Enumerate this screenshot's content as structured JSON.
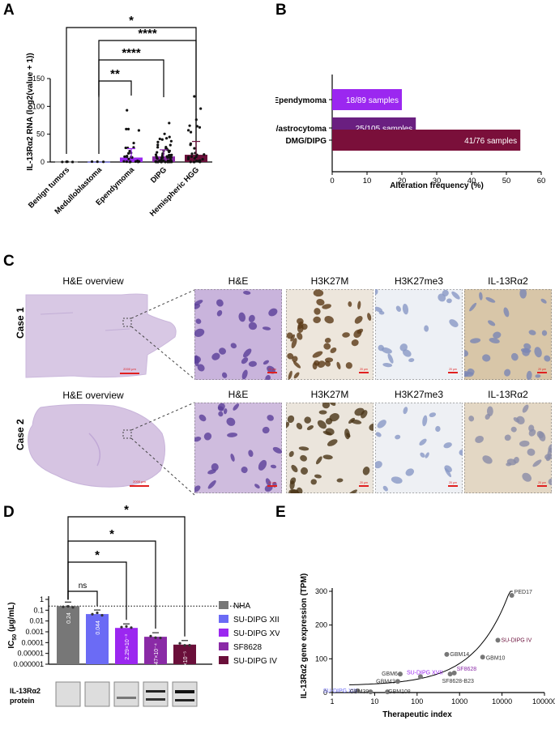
{
  "panels": {
    "a": "A",
    "b": "B",
    "c": "C",
    "d": "D",
    "e": "E"
  },
  "panel_a": {
    "ylabel": "IL-13Rα2 RNA (log2(value + 1))",
    "yticks": [
      "0",
      "50",
      "100",
      "150"
    ],
    "categories": [
      "Benign tumors",
      "Medulloblastoma",
      "Ependymoma",
      "DIPG",
      "Hemispheric HGG"
    ],
    "sig": [
      "*",
      "****",
      "****",
      "**"
    ]
  },
  "chart_data": [
    {
      "type": "bar",
      "title": "",
      "ylabel": "IL-13Rα2 RNA (log2(value + 1))",
      "categories": [
        "Benign tumors",
        "Medulloblastoma",
        "Ependymoma",
        "DIPG",
        "Hemispheric HGG"
      ],
      "values": [
        0.5,
        0.5,
        8,
        10,
        13
      ],
      "colors": [
        "#9b9b9b",
        "#6b6bf5",
        "#9b27f0",
        "#8a2aa6",
        "#6a0f3a"
      ],
      "ylim": [
        0,
        150
      ],
      "yticks": [
        0,
        50,
        100,
        150
      ]
    },
    {
      "type": "bar",
      "orientation": "horizontal",
      "xlabel": "Alteration frequency (%)",
      "categories": [
        "Ependymoma",
        "HGG/astrocytoma",
        "DMG/DIPG"
      ],
      "values": [
        20,
        24,
        54
      ],
      "labels": [
        "18/89 samples",
        "25/105 samples",
        "41/76 samples"
      ],
      "colors": [
        "#9b27f0",
        "#6a1f80",
        "#7a0f3a"
      ],
      "xlim": [
        0,
        60
      ],
      "xticks": [
        0,
        10,
        20,
        30,
        40,
        50,
        60
      ]
    },
    {
      "type": "bar",
      "ylabel": "IC50 (μg/mL)",
      "yscale": "log",
      "categories": [
        "NHA",
        "SU-DIPG XIII",
        "SU-DIPG XVII",
        "SF8628",
        "SU-DIPG IV"
      ],
      "values": [
        0.24,
        0.044,
        0.00229,
        0.000347,
        6.52e-05
      ],
      "bar_labels": [
        "0.24",
        "0.044",
        "2.29×10⁻³",
        "3.47×10⁻⁴",
        "6.52×10⁻⁵"
      ],
      "colors": [
        "#777777",
        "#6b6bf5",
        "#9b27f0",
        "#8a2aa6",
        "#6a0f3a"
      ],
      "yticks": [
        "1",
        "0.1",
        "0.01",
        "0.001",
        "0.0001",
        "0.00001",
        "0.000001"
      ],
      "threshold": 0.24
    },
    {
      "type": "scatter",
      "xscale": "log",
      "xlabel": "Therapeutic index",
      "ylabel": "IL-13Rα2 gene expression (TPM)",
      "xticks": [
        "1",
        "10",
        "100",
        "1000",
        "10000",
        "100000"
      ],
      "yticks": [
        0,
        100,
        200,
        300
      ],
      "ylim": [
        0,
        300
      ],
      "points": [
        {
          "name": "PED17",
          "x": 17000,
          "y": 288
        },
        {
          "name": "SU-DIPG IV",
          "x": 8000,
          "y": 155
        },
        {
          "name": "GBM10",
          "x": 3500,
          "y": 105
        },
        {
          "name": "GBM14",
          "x": 500,
          "y": 113
        },
        {
          "name": "SF8628",
          "x": 750,
          "y": 58
        },
        {
          "name": "SF8628-B23",
          "x": 600,
          "y": 55
        },
        {
          "name": "SU-DIPG XVII",
          "x": 120,
          "y": 47
        },
        {
          "name": "GBM6",
          "x": 40,
          "y": 55
        },
        {
          "name": "GBM43",
          "x": 35,
          "y": 33
        },
        {
          "name": "SU-DIPG XIII",
          "x": 4,
          "y": 5
        },
        {
          "name": "GBM39",
          "x": 8,
          "y": 2
        },
        {
          "name": "GBM108",
          "x": 20,
          "y": 2
        }
      ]
    }
  ],
  "panel_b": {
    "xlabel": "Alteration frequency (%)",
    "categories": [
      "Ependymoma",
      "HGG/astrocytoma",
      "DMG/DIPG"
    ],
    "labels": [
      "18/89 samples",
      "25/105 samples",
      "41/76 samples"
    ],
    "xticks": [
      "0",
      "10",
      "20",
      "30",
      "40",
      "50",
      "60"
    ]
  },
  "panel_c": {
    "overview": "H&E overview",
    "stains": [
      "H&E",
      "H3K27M",
      "H3K27me3",
      "IL-13Rα2"
    ],
    "cases": [
      "Case 1",
      "Case 2"
    ],
    "scale_overview": "2000 μm",
    "scale_micro": "20 μm"
  },
  "panel_d": {
    "ylabel_main": "IC",
    "ylabel_sub": "50",
    "ylabel_unit": " (μg/mL)",
    "yticks": [
      "1",
      "0.1",
      "0.01",
      "0.001",
      "0.0001",
      "0.00001",
      "0.000001"
    ],
    "bar_labels": [
      "0.24",
      "0.044",
      "2.29×10⁻³",
      "3.47×10⁻⁴",
      "6.52×10⁻⁵"
    ],
    "sig": [
      "*",
      "*",
      "*",
      "ns"
    ],
    "legend": [
      "NHA",
      "SU-DIPG XIII",
      "SU-DIPG XVII",
      "SF8628",
      "SU-DIPG IV"
    ],
    "protein_label_1": "IL-13Rα2",
    "protein_label_2": "protein"
  },
  "panel_e": {
    "ylabel": "IL-13Rα2 gene expression (TPM)",
    "xlabel": "Therapeutic index",
    "xticks": [
      "1",
      "10",
      "100",
      "1000",
      "10000",
      "100000"
    ],
    "yticks": [
      "0",
      "100",
      "200",
      "300"
    ],
    "point_labels": [
      "PED17",
      "SU-DIPG IV",
      "GBM10",
      "GBM14",
      "SF8628",
      "SF8628-B23",
      "SU-DIPG XVII",
      "GBM6",
      "GBM43",
      "SU-DIPG XIII",
      "GBM39",
      "GBM108"
    ]
  }
}
